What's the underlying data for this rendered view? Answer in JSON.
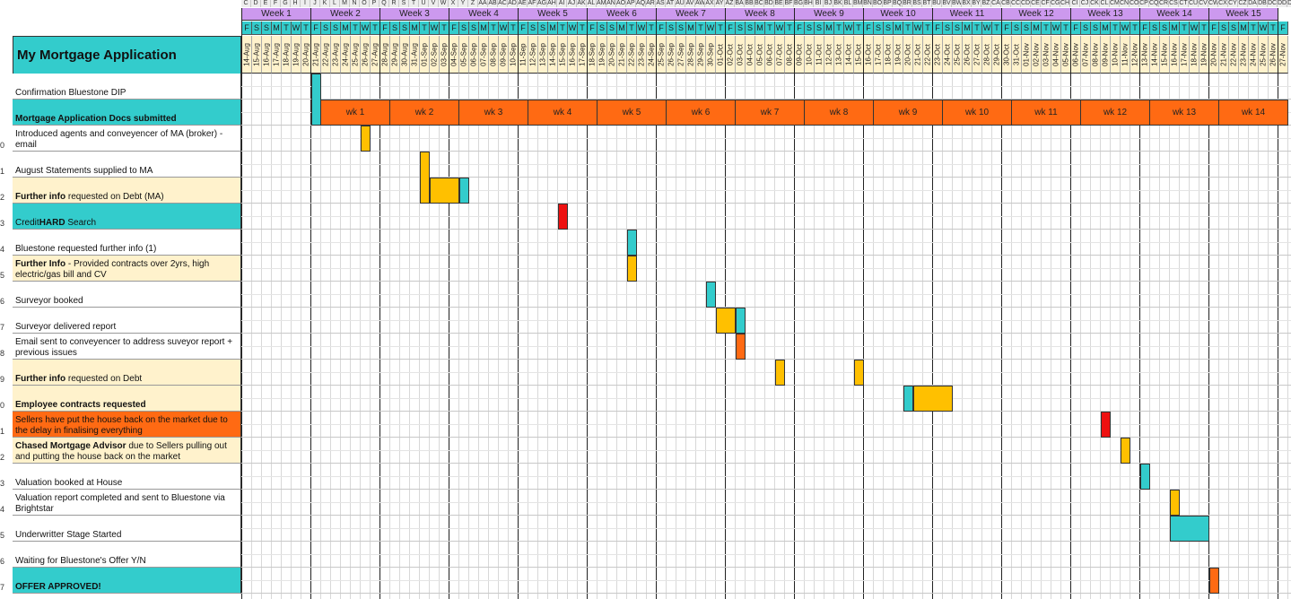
{
  "title": "My Mortgage Application",
  "colors": {
    "purple": "#cc99ee",
    "teal": "#33cccc",
    "orange": "#ff6a13",
    "amber": "#ffc000",
    "red": "#ee1111",
    "cream": "#fff2cc"
  },
  "column_letters": [
    "C",
    "D",
    "E",
    "F",
    "G",
    "H",
    "I",
    "J",
    "K",
    "L",
    "M",
    "N",
    "O",
    "P",
    "Q",
    "R",
    "S",
    "T",
    "U",
    "V",
    "W",
    "X",
    "Y",
    "Z",
    "AA",
    "AB",
    "AC",
    "AD",
    "AE",
    "AF",
    "AG",
    "AH",
    "AI",
    "AJ",
    "AK",
    "AL",
    "AM",
    "AN",
    "AO",
    "AP",
    "AQ",
    "AR",
    "AS",
    "AT",
    "AU",
    "AV",
    "AW",
    "AX",
    "AY",
    "AZ",
    "BA",
    "BB",
    "BC",
    "BD",
    "BE",
    "BF",
    "BG",
    "BH",
    "BI",
    "BJ",
    "BK",
    "BL",
    "BM",
    "BN",
    "BO",
    "BP",
    "BQ",
    "BR",
    "BS",
    "BT",
    "BU",
    "BV",
    "BW",
    "BX",
    "BY",
    "BZ",
    "CA",
    "CB",
    "CC",
    "CD",
    "CE",
    "CF",
    "CG",
    "CH",
    "CI",
    "CJ",
    "CK",
    "CL",
    "CM",
    "CN",
    "CO",
    "CP",
    "CQ",
    "CR",
    "CS",
    "CT",
    "CU",
    "CV",
    "CW",
    "CX",
    "CY",
    "CZ",
    "DA",
    "DB",
    "DC",
    "DD",
    "DE",
    "DF",
    "DG",
    "DH",
    "DI",
    "DJ"
  ],
  "weeks": [
    "Week 1",
    "Week 2",
    "Week 3",
    "Week 4",
    "Week 5",
    "Week 6",
    "Week 7",
    "Week 8",
    "Week 9",
    "Week 10",
    "Week 11",
    "Week 12",
    "Week 13",
    "Week 14",
    "Week 15"
  ],
  "day_letters": [
    "F",
    "S",
    "S",
    "M",
    "T",
    "W",
    "T"
  ],
  "start_date": "14-Aug",
  "dates": [
    "14-Aug",
    "15-Aug",
    "16-Aug",
    "17-Aug",
    "18-Aug",
    "19-Aug",
    "20-Aug",
    "21-Aug",
    "22-Aug",
    "23-Aug",
    "24-Aug",
    "25-Aug",
    "26-Aug",
    "27-Aug",
    "28-Aug",
    "29-Aug",
    "30-Aug",
    "31-Aug",
    "01-Sep",
    "02-Sep",
    "03-Sep",
    "04-Sep",
    "05-Sep",
    "06-Sep",
    "07-Sep",
    "08-Sep",
    "09-Sep",
    "10-Sep",
    "11-Sep",
    "12-Sep",
    "13-Sep",
    "14-Sep",
    "15-Sep",
    "16-Sep",
    "17-Sep",
    "18-Sep",
    "19-Sep",
    "20-Sep",
    "21-Sep",
    "22-Sep",
    "23-Sep",
    "24-Sep",
    "25-Sep",
    "26-Sep",
    "27-Sep",
    "28-Sep",
    "29-Sep",
    "30-Sep",
    "01-Oct",
    "02-Oct",
    "03-Oct",
    "04-Oct",
    "05-Oct",
    "06-Oct",
    "07-Oct",
    "08-Oct",
    "09-Oct",
    "10-Oct",
    "11-Oct",
    "12-Oct",
    "13-Oct",
    "14-Oct",
    "15-Oct",
    "16-Oct",
    "17-Oct",
    "18-Oct",
    "19-Oct",
    "20-Oct",
    "21-Oct",
    "22-Oct",
    "23-Oct",
    "24-Oct",
    "25-Oct",
    "26-Oct",
    "27-Oct",
    "28-Oct",
    "29-Oct",
    "30-Oct",
    "31-Oct",
    "01-Nov",
    "02-Nov",
    "03-Nov",
    "04-Nov",
    "05-Nov",
    "06-Nov",
    "07-Nov",
    "08-Nov",
    "09-Nov",
    "10-Nov",
    "11-Nov",
    "12-Nov",
    "13-Nov",
    "14-Nov",
    "15-Nov",
    "16-Nov",
    "17-Nov",
    "18-Nov",
    "19-Nov",
    "20-Nov",
    "21-Nov",
    "22-Nov",
    "23-Nov",
    "24-Nov",
    "25-Nov",
    "26-Nov",
    "27-Nov"
  ],
  "wk_labels": [
    "wk 1",
    "wk 2",
    "wk 3",
    "wk 4",
    "wk 5",
    "wk 6",
    "wk 7",
    "wk 8",
    "wk 9",
    "wk 10",
    "wk 11",
    "wk 12",
    "wk 13",
    "wk 14"
  ],
  "row_numbers": [
    "0",
    "1",
    "2",
    "3",
    "4",
    "5",
    "6",
    "7",
    "8",
    "9",
    "0",
    "1",
    "2",
    "3",
    "4",
    "5",
    "6",
    "7"
  ],
  "tasks": [
    {
      "bold": "",
      "text": "Confirmation Bluestone DIP",
      "fill": "#ffffff"
    },
    {
      "bold": "Mortgage Application Docs submitted",
      "text": "",
      "fill": "#33cccc"
    },
    {
      "bold": "",
      "text": "Introduced agents and conveyencer of MA (broker) - email",
      "fill": "#ffffff"
    },
    {
      "bold": "",
      "text": "August Statements supplied to MA",
      "fill": "#ffffff"
    },
    {
      "bold": "Further info",
      "text": " requested on Debt (MA)",
      "fill": "#fff2cc"
    },
    {
      "bold": "HARD",
      "text": " Search",
      "prefix": "Credit ",
      "fill": "#33cccc"
    },
    {
      "bold": "",
      "text": "Bluestone requested further info (1)",
      "fill": "#ffffff"
    },
    {
      "bold": "Further Info",
      "text": "  - Provided contracts over 2yrs, high electric/gas bill and CV",
      "fill": "#fff2cc"
    },
    {
      "bold": "",
      "text": "Surveyor booked",
      "fill": "#ffffff"
    },
    {
      "bold": "",
      "text": "Surveyor delivered report",
      "fill": "#ffffff"
    },
    {
      "bold": "",
      "text": "Email sent to conveyencer to address suveyor report + previous issues",
      "fill": "#ffffff"
    },
    {
      "bold": "Further info",
      "text": " requested on Debt",
      "fill": "#fff2cc"
    },
    {
      "bold": "Employee contracts requested",
      "text": "",
      "fill": "#fff2cc"
    },
    {
      "bold": "",
      "text": "Sellers have put the house back on the market due to the delay in finalising everything",
      "fill": "#ff6a13"
    },
    {
      "bold": "Chased Mortgage Advisor",
      "text": " due to Sellers pulling out and putting the house back on the market",
      "fill": "#fff2cc"
    },
    {
      "bold": "",
      "text": "Valuation booked at House",
      "fill": "#ffffff"
    },
    {
      "bold": "",
      "text": "Valuation report completed and sent to Bluestone via Brightstar",
      "fill": "#ffffff"
    },
    {
      "bold": "",
      "text": "Underwritter Stage Started",
      "fill": "#ffffff"
    },
    {
      "bold": "",
      "text": "Waiting for Bluestone's Offer Y/N",
      "fill": "#ffffff"
    },
    {
      "bold": "OFFER APPROVED!",
      "text": "",
      "fill": "#33cccc"
    }
  ],
  "bars": [
    {
      "row": 0,
      "day": 7,
      "len": 1,
      "color": "#33cccc",
      "rows": 2
    },
    {
      "row": 2,
      "day": 12,
      "len": 1,
      "color": "#ffc000"
    },
    {
      "row": 3,
      "day": 18,
      "len": 1,
      "color": "#ffc000",
      "rows": 2
    },
    {
      "row": 4,
      "day": 19,
      "len": 3,
      "color": "#ffc000"
    },
    {
      "row": 4,
      "day": 22,
      "len": 1,
      "color": "#33cccc"
    },
    {
      "row": 5,
      "day": 32,
      "len": 1,
      "color": "#ee1111"
    },
    {
      "row": 6,
      "day": 39,
      "len": 1,
      "color": "#33cccc"
    },
    {
      "row": 7,
      "day": 39,
      "len": 1,
      "color": "#ffc000"
    },
    {
      "row": 8,
      "day": 47,
      "len": 1,
      "color": "#33cccc"
    },
    {
      "row": 9,
      "day": 48,
      "len": 2,
      "color": "#ffc000"
    },
    {
      "row": 9,
      "day": 50,
      "len": 1,
      "color": "#33cccc"
    },
    {
      "row": 10,
      "day": 50,
      "len": 1,
      "color": "#ff6a13"
    },
    {
      "row": 11,
      "day": 54,
      "len": 1,
      "color": "#ffc000"
    },
    {
      "row": 11,
      "day": 62,
      "len": 1,
      "color": "#ffc000"
    },
    {
      "row": 12,
      "day": 67,
      "len": 1,
      "color": "#33cccc"
    },
    {
      "row": 12,
      "day": 68,
      "len": 4,
      "color": "#ffc000"
    },
    {
      "row": 13,
      "day": 87,
      "len": 1,
      "color": "#ee1111"
    },
    {
      "row": 14,
      "day": 89,
      "len": 1,
      "color": "#ffc000"
    },
    {
      "row": 15,
      "day": 91,
      "len": 1,
      "color": "#33cccc"
    },
    {
      "row": 16,
      "day": 94,
      "len": 1,
      "color": "#ffc000"
    },
    {
      "row": 17,
      "day": 94,
      "len": 4,
      "color": "#33cccc"
    },
    {
      "row": 19,
      "day": 98,
      "len": 1,
      "color": "#ff6a13"
    }
  ]
}
